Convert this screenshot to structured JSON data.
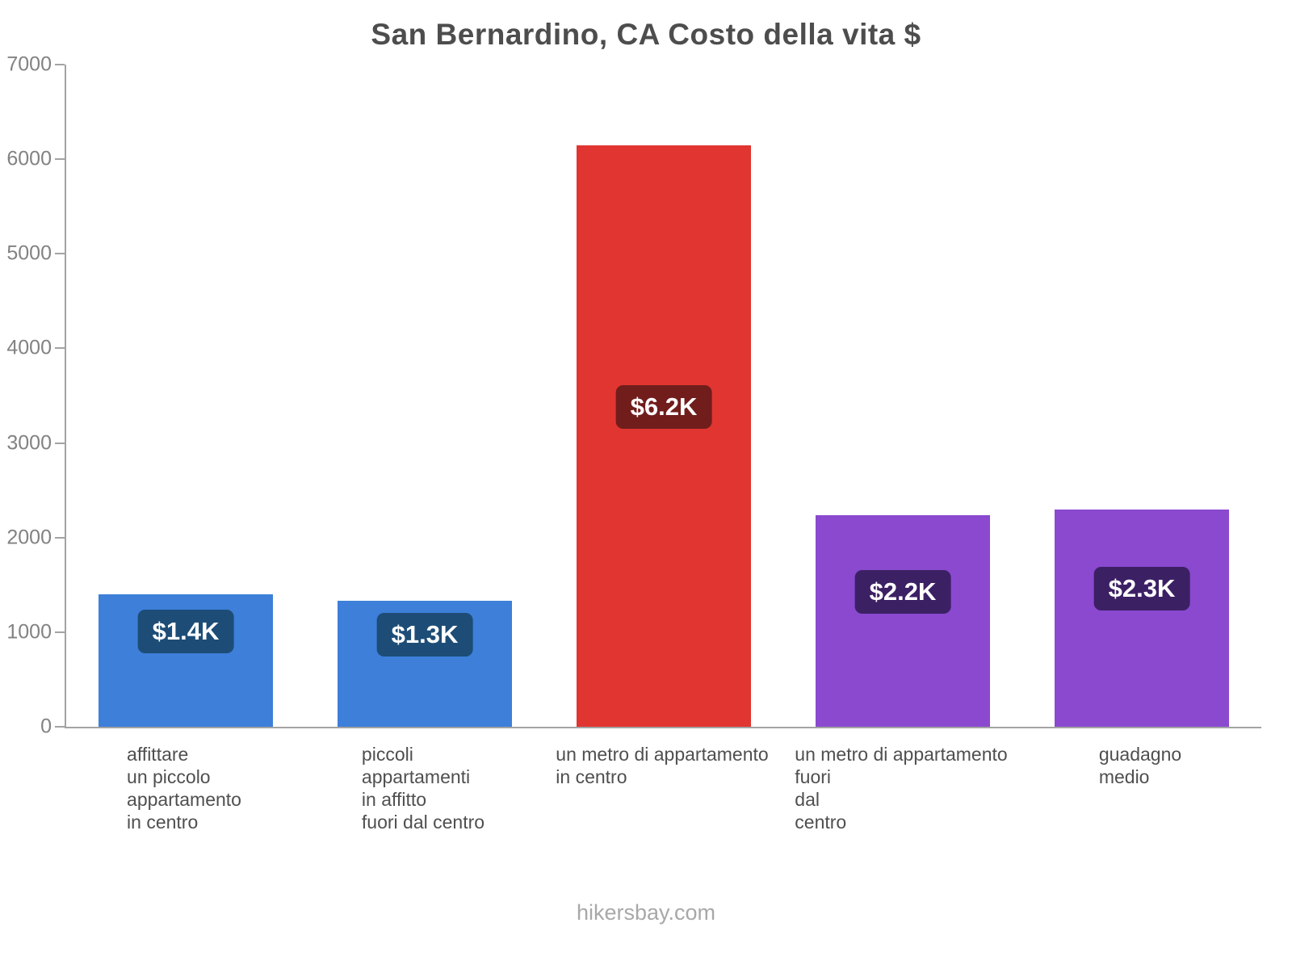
{
  "watermark": "hikersbay.com",
  "chart_data": {
    "type": "bar",
    "title": "San Bernardino, CA Costo della vita $",
    "categories": [
      "affittare\nun piccolo\nappartamento\nin centro",
      "piccoli\nappartamenti\nin affitto\nfuori dal centro",
      "un metro di appartamento\nin centro",
      "un metro di appartamento\nfuori\ndal\ncentro",
      "guadagno\nmedio"
    ],
    "values": [
      1400,
      1330,
      6150,
      2240,
      2300
    ],
    "value_labels": [
      "$1.4K",
      "$1.3K",
      "$6.2K",
      "$2.2K",
      "$2.3K"
    ],
    "bar_colors": [
      "#3d7fd9",
      "#3d7fd9",
      "#e13531",
      "#8a49cf",
      "#8a49cf"
    ],
    "label_bg_colors": [
      "#1d4d77",
      "#701d1c",
      "#3c2064"
    ],
    "label_bg_per_bar": [
      "#1d4d77",
      "#1d4d77",
      "#701d1c",
      "#3c2064",
      "#3c2064"
    ],
    "xlabel": "",
    "ylabel": "",
    "ylim": [
      0,
      7000
    ],
    "yticks": [
      0,
      1000,
      2000,
      3000,
      4000,
      5000,
      6000,
      7000
    ],
    "grid": false,
    "legend": false
  }
}
